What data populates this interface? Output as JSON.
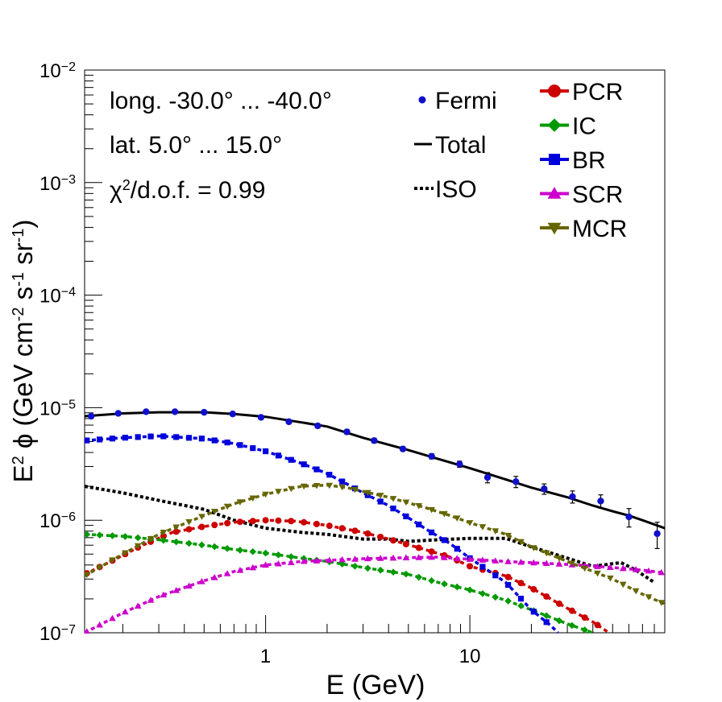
{
  "chart_data": {
    "type": "line",
    "xscale": "log",
    "yscale": "log",
    "xlim": [
      0.13,
      90
    ],
    "ylim": [
      1e-07,
      0.01
    ],
    "xlabel": "E (GeV)",
    "ylabel": {
      "main": "E",
      "sup2": "2",
      "phi": " ϕ (GeV cm",
      "sup_m2": "-2",
      "s": " s",
      "sup_m1a": "-1",
      "sr": " sr",
      "sup_m1b": "-1",
      "close": ")"
    },
    "x_ticks": [
      {
        "value": 1,
        "label": "1"
      },
      {
        "value": 10,
        "label": "10"
      }
    ],
    "y_ticks": [
      {
        "value": 1e-07,
        "base": "10",
        "exp": "−7"
      },
      {
        "value": 1e-06,
        "base": "10",
        "exp": "−6"
      },
      {
        "value": 1e-05,
        "base": "10",
        "exp": "−5"
      },
      {
        "value": 0.0001,
        "base": "10",
        "exp": "−4"
      },
      {
        "value": 0.001,
        "base": "10",
        "exp": "−3"
      },
      {
        "value": 0.01,
        "base": "10",
        "exp": "−2"
      }
    ],
    "annotations": {
      "longitude": "long. -30.0° ... -40.0°",
      "latitude": "lat. 5.0° ... 15.0°",
      "chi2_symbol": "χ",
      "chi2_sup": "2",
      "chi2_rest": "/d.o.f. = 0.99"
    },
    "legend_placement": "top-right",
    "fermi": {
      "name": "Fermi",
      "color": "#1010cc",
      "points": [
        [
          0.14,
          8.4e-06,
          3e-07
        ],
        [
          0.19,
          8.9e-06,
          3e-07
        ],
        [
          0.26,
          9.2e-06,
          3e-07
        ],
        [
          0.36,
          9.2e-06,
          3e-07
        ],
        [
          0.5,
          9.1e-06,
          3e-07
        ],
        [
          0.69,
          8.8e-06,
          3e-07
        ],
        [
          0.95,
          8.2e-06,
          3e-07
        ],
        [
          1.3,
          7.5e-06,
          3e-07
        ],
        [
          1.8,
          6.9e-06,
          3e-07
        ],
        [
          2.5,
          6.1e-06,
          3e-07
        ],
        [
          3.4,
          5.1e-06,
          2.5e-07
        ],
        [
          4.7,
          4.3e-06,
          2e-07
        ],
        [
          6.5,
          3.7e-06,
          2e-07
        ],
        [
          8.9,
          3.15e-06,
          2e-07
        ],
        [
          12.2,
          2.4e-06,
          2.5e-07
        ],
        [
          16.8,
          2.2e-06,
          2.5e-07
        ],
        [
          23.1,
          1.9e-06,
          2e-07
        ],
        [
          31.8,
          1.62e-06,
          2e-07
        ],
        [
          43.7,
          1.48e-06,
          2e-07
        ],
        [
          60.1,
          1.07e-06,
          2e-07
        ],
        [
          82.6,
          7.6e-07,
          2e-07
        ]
      ]
    },
    "series": [
      {
        "name": "Total",
        "color": "#000000",
        "style": "solid",
        "marker": "none",
        "points": [
          [
            0.13,
            8.4e-06
          ],
          [
            0.2,
            8.9e-06
          ],
          [
            0.3,
            9.1e-06
          ],
          [
            0.5,
            9.1e-06
          ],
          [
            0.7,
            8.8e-06
          ],
          [
            1.0,
            8.3e-06
          ],
          [
            1.5,
            7.4e-06
          ],
          [
            2.0,
            6.8e-06
          ],
          [
            3.0,
            5.4e-06
          ],
          [
            5.0,
            4.2e-06
          ],
          [
            7.0,
            3.5e-06
          ],
          [
            10.0,
            2.9e-06
          ],
          [
            15.0,
            2.3e-06
          ],
          [
            20.0,
            1.95e-06
          ],
          [
            30.0,
            1.6e-06
          ],
          [
            40.0,
            1.35e-06
          ],
          [
            50.0,
            1.2e-06
          ],
          [
            60.0,
            1.1e-06
          ],
          [
            70.0,
            1e-06
          ],
          [
            90.0,
            8.5e-07
          ]
        ]
      },
      {
        "name": "ISO",
        "color": "#000000",
        "style": "dotted",
        "marker": "none",
        "points": [
          [
            0.13,
            2e-06
          ],
          [
            0.2,
            1.75e-06
          ],
          [
            0.3,
            1.5e-06
          ],
          [
            0.5,
            1.25e-06
          ],
          [
            0.7,
            1e-06
          ],
          [
            1.0,
            8.5e-07
          ],
          [
            1.5,
            7.8e-07
          ],
          [
            2.0,
            7.5e-07
          ],
          [
            3.0,
            6.8e-07
          ],
          [
            4.0,
            6.8e-07
          ],
          [
            5.0,
            6.5e-07
          ],
          [
            7.0,
            6.7e-07
          ],
          [
            10.0,
            6.9e-07
          ],
          [
            15.0,
            6.9e-07
          ],
          [
            20.0,
            5.8e-07
          ],
          [
            30.0,
            4.6e-07
          ],
          [
            40.0,
            3.9e-07
          ],
          [
            55.0,
            4.2e-07
          ],
          [
            65.0,
            3.6e-07
          ],
          [
            80.0,
            2.8e-07
          ]
        ]
      },
      {
        "name": "PCR",
        "color": "#cc0000",
        "style": "dashed",
        "marker": "circle",
        "points": [
          [
            0.13,
            3.3e-07
          ],
          [
            0.17,
            4.2e-07
          ],
          [
            0.25,
            6e-07
          ],
          [
            0.35,
            7.8e-07
          ],
          [
            0.5,
            8.8e-07
          ],
          [
            0.7,
            9.6e-07
          ],
          [
            1.0,
            1e-06
          ],
          [
            1.4,
            9.8e-07
          ],
          [
            2.0,
            9e-07
          ],
          [
            3.0,
            7.8e-07
          ],
          [
            4.0,
            6.8e-07
          ],
          [
            6.0,
            5.5e-07
          ],
          [
            8.0,
            4.7e-07
          ],
          [
            10.0,
            3.9e-07
          ],
          [
            15.0,
            3.2e-07
          ],
          [
            20.0,
            2.5e-07
          ],
          [
            30.0,
            1.65e-07
          ],
          [
            40.0,
            1.25e-07
          ],
          [
            48.0,
            1e-07
          ]
        ]
      },
      {
        "name": "IC",
        "color": "#009900",
        "style": "dashed",
        "marker": "diamond",
        "points": [
          [
            0.13,
            7.5e-07
          ],
          [
            0.2,
            7.2e-07
          ],
          [
            0.3,
            6.7e-07
          ],
          [
            0.5,
            6e-07
          ],
          [
            0.7,
            5.5e-07
          ],
          [
            1.0,
            5.1e-07
          ],
          [
            1.5,
            4.6e-07
          ],
          [
            2.0,
            4.3e-07
          ],
          [
            3.0,
            3.8e-07
          ],
          [
            5.0,
            3.3e-07
          ],
          [
            7.0,
            2.8e-07
          ],
          [
            10.0,
            2.4e-07
          ],
          [
            15.0,
            1.95e-07
          ],
          [
            20.0,
            1.6e-07
          ],
          [
            30.0,
            1.2e-07
          ],
          [
            40.0,
            1e-07
          ]
        ]
      },
      {
        "name": "BR",
        "color": "#0000dd",
        "style": "dashed",
        "marker": "square",
        "points": [
          [
            0.13,
            5.1e-06
          ],
          [
            0.2,
            5.4e-06
          ],
          [
            0.3,
            5.6e-06
          ],
          [
            0.5,
            5.3e-06
          ],
          [
            0.7,
            4.8e-06
          ],
          [
            1.0,
            4.1e-06
          ],
          [
            1.5,
            3.2e-06
          ],
          [
            2.0,
            2.6e-06
          ],
          [
            2.5,
            2.1e-06
          ],
          [
            3.0,
            1.75e-06
          ],
          [
            4.0,
            1.35e-06
          ],
          [
            5.0,
            1.05e-06
          ],
          [
            6.0,
            8.5e-07
          ],
          [
            8.0,
            6.2e-07
          ],
          [
            10.0,
            4.6e-07
          ],
          [
            15.0,
            2.8e-07
          ],
          [
            20.0,
            1.6e-07
          ],
          [
            25.0,
            1.15e-07
          ],
          [
            27.0,
            1e-07
          ]
        ]
      },
      {
        "name": "SCR",
        "color": "#cc00cc",
        "style": "dashed",
        "marker": "triangle-up",
        "points": [
          [
            0.13,
            1e-07
          ],
          [
            0.2,
            1.5e-07
          ],
          [
            0.3,
            2.1e-07
          ],
          [
            0.5,
            2.9e-07
          ],
          [
            0.7,
            3.5e-07
          ],
          [
            1.0,
            4e-07
          ],
          [
            1.5,
            4.3e-07
          ],
          [
            2.0,
            4.4e-07
          ],
          [
            3.0,
            4.55e-07
          ],
          [
            5.0,
            4.65e-07
          ],
          [
            7.0,
            4.7e-07
          ],
          [
            10.0,
            4.5e-07
          ],
          [
            15.0,
            4.3e-07
          ],
          [
            20.0,
            4.2e-07
          ],
          [
            30.0,
            4.05e-07
          ],
          [
            50.0,
            3.8e-07
          ],
          [
            70.0,
            3.6e-07
          ],
          [
            90.0,
            3.4e-07
          ]
        ]
      },
      {
        "name": "MCR",
        "color": "#666600",
        "style": "dashed",
        "marker": "triangle-down",
        "points": [
          [
            0.13,
            3.2e-07
          ],
          [
            0.2,
            5e-07
          ],
          [
            0.3,
            7.5e-07
          ],
          [
            0.5,
            1.1e-06
          ],
          [
            0.7,
            1.4e-06
          ],
          [
            1.0,
            1.7e-06
          ],
          [
            1.5,
            2e-06
          ],
          [
            2.0,
            2.05e-06
          ],
          [
            2.5,
            1.95e-06
          ],
          [
            3.0,
            1.8e-06
          ],
          [
            4.0,
            1.6e-06
          ],
          [
            6.0,
            1.3e-06
          ],
          [
            8.0,
            1.1e-06
          ],
          [
            10.0,
            9.5e-07
          ],
          [
            15.0,
            7.5e-07
          ],
          [
            20.0,
            5.8e-07
          ],
          [
            30.0,
            4.3e-07
          ],
          [
            50.0,
            3e-07
          ],
          [
            70.0,
            2.2e-07
          ],
          [
            90.0,
            1.8e-07
          ]
        ]
      }
    ]
  }
}
